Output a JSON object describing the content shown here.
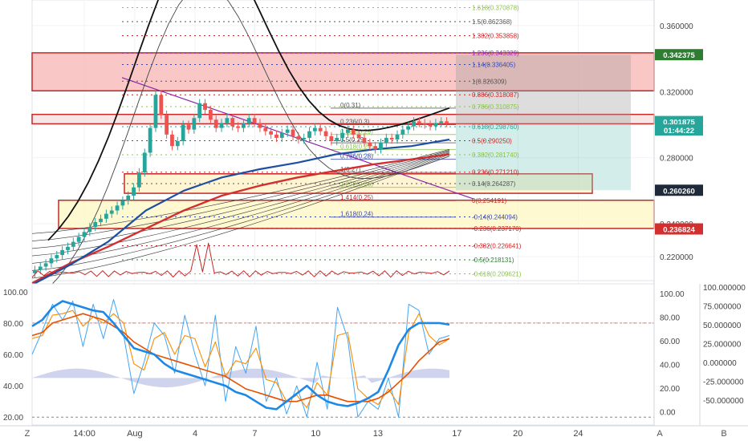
{
  "chart_data": {
    "type": "line",
    "panel": "price",
    "price_axis": {
      "ylim": [
        0.2055,
        0.3755
      ],
      "ticks": [
        {
          "label": "0.360000",
          "value": 0.36
        },
        {
          "label": "0.320000",
          "value": 0.32
        },
        {
          "label": "0.280000",
          "value": 0.28
        },
        {
          "label": "0.240000",
          "value": 0.24
        },
        {
          "label": "0.220000",
          "value": 0.22
        }
      ],
      "badges": [
        {
          "label": "0.342375",
          "value": 0.342375,
          "color": "#2e7d32"
        },
        {
          "label": "0.301875",
          "value": 0.301875,
          "color": "#26a69a"
        },
        {
          "label": "01:44:22",
          "value": 0.2968,
          "color": "#26a69a"
        },
        {
          "label": "0.260260",
          "value": 0.26026,
          "color": "#1e2a3a"
        },
        {
          "label": "0.236824",
          "value": 0.236824,
          "color": "#d32f2f"
        }
      ]
    },
    "fib_right": [
      {
        "label": "1.618(0.370878)",
        "value": 0.370878,
        "color": "#8bc34a"
      },
      {
        "label": "1.5(0.362368)",
        "value": 0.362368,
        "color": "#555555"
      },
      {
        "label": "1.382(0.353858)",
        "value": 0.353858,
        "color": "#c62828"
      },
      {
        "label": "1.236(0.343329)",
        "value": 0.343329,
        "color": "#8e24aa"
      },
      {
        "label": "1.14(0.336405)",
        "value": 0.336405,
        "color": "#3949ab"
      },
      {
        "label": "1(0.326309)",
        "value": 0.326309,
        "color": "#555555"
      },
      {
        "label": "0.886(0.318087)",
        "value": 0.318087,
        "color": "#c62828"
      },
      {
        "label": "0.786(0.310875)",
        "value": 0.310875,
        "color": "#8bc34a"
      },
      {
        "label": "0.618(0.298760)",
        "value": 0.29876,
        "color": "#26a69a"
      },
      {
        "label": "0.5(0.290250)",
        "value": 0.29025,
        "color": "#c62828"
      },
      {
        "label": "0.382(0.281740)",
        "value": 0.28174,
        "color": "#8bc34a"
      },
      {
        "label": "0.236(0.271210)",
        "value": 0.27121,
        "color": "#c62828"
      },
      {
        "label": "0.14(0.264287)",
        "value": 0.264287,
        "color": "#555555"
      },
      {
        "label": "0(0.254191)",
        "value": 0.254191,
        "color": "#c62828"
      },
      {
        "label": "-0.14(0.244094)",
        "value": 0.244094,
        "color": "#3949ab"
      },
      {
        "label": "-0.236(0.237170)",
        "value": 0.23717,
        "color": "#c62828"
      },
      {
        "label": "-0.382(0.226641)",
        "value": 0.226641,
        "color": "#c62828"
      },
      {
        "label": "-0.5(0.218131)",
        "value": 0.218131,
        "color": "#2e7d32"
      },
      {
        "label": "-0.618(0.209621)",
        "value": 0.209621,
        "color": "#8bc34a"
      }
    ],
    "fib_mid": [
      {
        "label": "0(0.31)",
        "value": 0.31,
        "color": "#555555"
      },
      {
        "label": "0.236(0.3)",
        "value": 0.3,
        "color": "#555555"
      },
      {
        "label": "0.382(0.29)",
        "value": 0.294,
        "color": "#8bc34a"
      },
      {
        "label": "0.5(0.29)",
        "value": 0.289,
        "color": "#555555"
      },
      {
        "label": "0.618(0.29)",
        "value": 0.285,
        "color": "#8bc34a"
      },
      {
        "label": "0.786(0.28)",
        "value": 0.279,
        "color": "#3949ab"
      },
      {
        "label": "1(0.27)",
        "value": 0.271,
        "color": "#555555"
      },
      {
        "label": "1.272(0.26)",
        "value": 0.262,
        "color": "#8bc34a"
      },
      {
        "label": "1.414(0.25)",
        "value": 0.254,
        "color": "#c62828"
      },
      {
        "label": "1.618(0.24)",
        "value": 0.244,
        "color": "#3949ab"
      }
    ],
    "zones": [
      {
        "name": "resistance",
        "range": [
          0.3205,
          0.3435
        ],
        "color": "#f8b4b4"
      },
      {
        "name": "supply band",
        "range": [
          0.3005,
          0.3062
        ],
        "color": "#f6dede"
      },
      {
        "name": "demand box",
        "range": [
          0.2584,
          0.2702
        ],
        "color": "#fff1c4"
      },
      {
        "name": "support box",
        "range": [
          0.2371,
          0.2542
        ],
        "color": "#fff7c2"
      }
    ],
    "candles_close": [
      0.212,
      0.214,
      0.216,
      0.219,
      0.221,
      0.224,
      0.226,
      0.229,
      0.232,
      0.235,
      0.238,
      0.241,
      0.243,
      0.246,
      0.248,
      0.251,
      0.254,
      0.257,
      0.262,
      0.271,
      0.283,
      0.298,
      0.318,
      0.306,
      0.294,
      0.287,
      0.29,
      0.3,
      0.297,
      0.304,
      0.313,
      0.309,
      0.303,
      0.298,
      0.301,
      0.304,
      0.299,
      0.298,
      0.301,
      0.304,
      0.301,
      0.298,
      0.296,
      0.294,
      0.292,
      0.295,
      0.297,
      0.293,
      0.291,
      0.292,
      0.296,
      0.298,
      0.296,
      0.293,
      0.29,
      0.292,
      0.295,
      0.297,
      0.294,
      0.292,
      0.289,
      0.287,
      0.285,
      0.289,
      0.292,
      0.291,
      0.294,
      0.297,
      0.299,
      0.302,
      0.301,
      0.3,
      0.299,
      0.301,
      0.302,
      0.301
    ],
    "moving_averages": [
      {
        "color": "#d32f2f",
        "values": [
          0.204,
          0.216,
          0.226,
          0.237,
          0.248,
          0.257,
          0.263,
          0.268,
          0.272,
          0.276,
          0.279,
          0.282
        ]
      },
      {
        "color": "#1e4fa3",
        "values": [
          0.203,
          0.215,
          0.229,
          0.248,
          0.26,
          0.268,
          0.273,
          0.277,
          0.282,
          0.285,
          0.287,
          0.291
        ]
      }
    ],
    "time_axis": [
      {
        "label": "14:00",
        "pos": 0.084
      },
      {
        "label": "Aug",
        "pos": 0.165
      },
      {
        "label": "4",
        "pos": 0.262
      },
      {
        "label": "7",
        "pos": 0.358
      },
      {
        "label": "10",
        "pos": 0.456
      },
      {
        "label": "13",
        "pos": 0.556
      },
      {
        "label": "17",
        "pos": 0.683
      },
      {
        "label": "20",
        "pos": 0.781
      },
      {
        "label": "24",
        "pos": 0.878
      }
    ],
    "oscillator": {
      "left_ticks": [
        "100.00",
        "80.00",
        "60.00",
        "40.00",
        "20.00"
      ],
      "left_ylim": [
        15,
        105
      ],
      "mid_ticks": [
        "100.00",
        "80.00",
        "60.00",
        "40.00",
        "20.00",
        "0.00"
      ],
      "right_ticks": [
        "100.000000",
        "75.000000",
        "50.000000",
        "25.000000",
        "0.000000",
        "-25.000000",
        "-50.000000"
      ],
      "levels": [
        80,
        20
      ],
      "stoch_k": [
        60,
        75,
        92,
        82,
        94,
        65,
        92,
        70,
        95,
        72,
        35,
        55,
        80,
        72,
        48,
        85,
        60,
        40,
        85,
        30,
        65,
        48,
        78,
        30,
        45,
        22,
        40,
        20,
        55,
        25,
        90,
        70,
        20,
        30,
        25,
        45,
        20,
        92,
        88,
        60,
        70,
        72
      ],
      "stoch_d": [
        70,
        72,
        85,
        86,
        88,
        78,
        84,
        80,
        86,
        80,
        54,
        50,
        70,
        74,
        60,
        72,
        70,
        52,
        68,
        46,
        56,
        54,
        64,
        44,
        42,
        30,
        34,
        26,
        42,
        34,
        72,
        74,
        38,
        32,
        28,
        38,
        28,
        74,
        86,
        72,
        66,
        70
      ],
      "rsi": [
        78,
        82,
        90,
        94,
        92,
        90,
        88,
        87,
        80,
        72,
        64,
        62,
        60,
        54,
        50,
        48,
        46,
        44,
        42,
        40,
        36,
        34,
        30,
        26,
        25,
        30,
        35,
        40,
        34,
        30,
        28,
        27,
        29,
        32,
        36,
        50,
        66,
        76,
        80,
        80,
        80,
        79
      ],
      "ma": [
        72,
        74,
        80,
        82,
        84,
        86,
        84,
        82,
        78,
        74,
        68,
        64,
        60,
        58,
        56,
        54,
        52,
        50,
        48,
        46,
        42,
        38,
        36,
        34,
        32,
        30,
        30,
        32,
        34,
        34,
        32,
        30,
        30,
        30,
        32,
        36,
        42,
        48,
        56,
        62,
        68,
        70
      ]
    }
  },
  "ui": {
    "bottom_left_icon": "Z",
    "bottom_mid_label": "A",
    "bottom_right_label": "B"
  }
}
